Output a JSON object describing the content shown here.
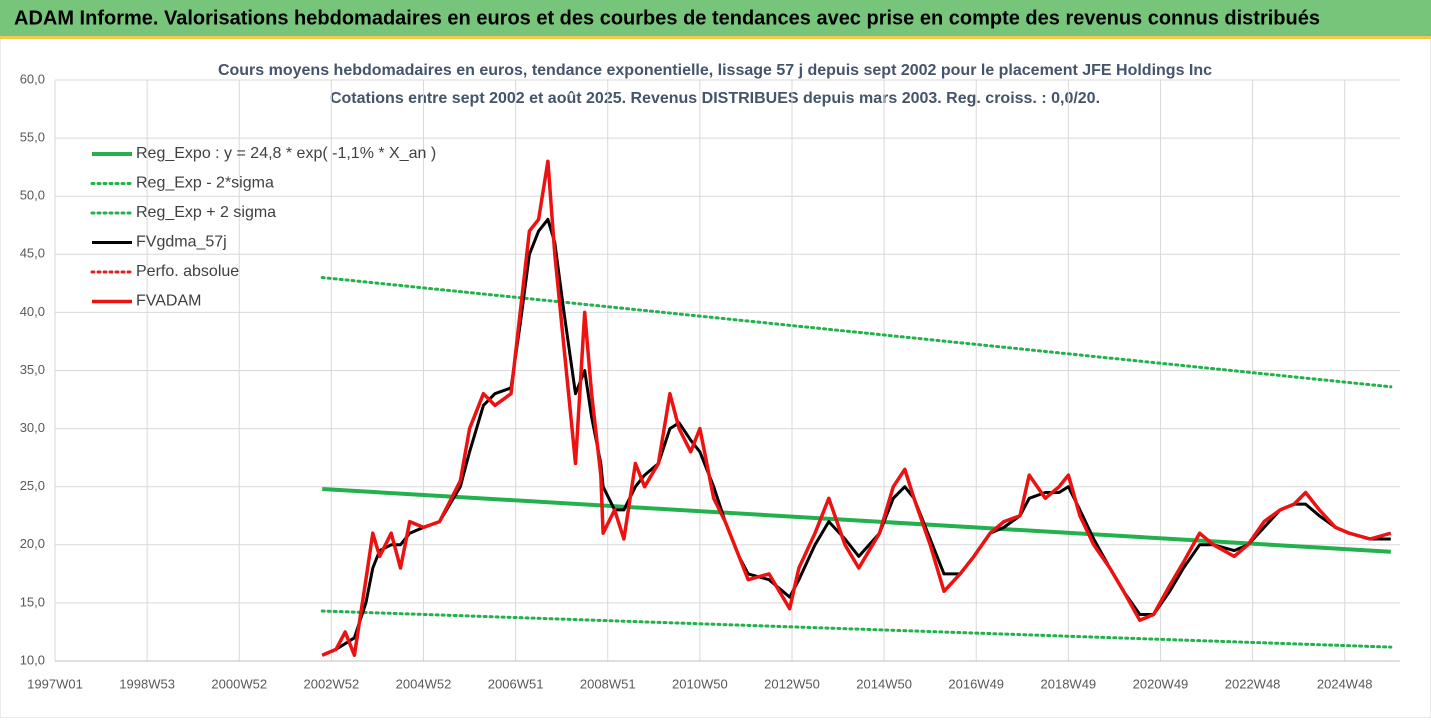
{
  "header": {
    "title": "ADAM Informe. Valorisations hebdomadaires en euros et des courbes de tendances avec prise en compte des revenus connus distribués"
  },
  "chart_data": {
    "type": "line",
    "title": "Cours moyens hebdomadaires en euros, tendance exponentielle, lissage 57 j depuis sept 2002 pour le placement JFE Holdings Inc",
    "subtitle": "Cotations entre sept 2002 et août 2025. Revenus DISTRIBUES depuis mars 2003. Reg. croiss. : 0,0/20.",
    "grid": true,
    "legend": "top-left",
    "xlim": [
      1997,
      2026.2
    ],
    "xticks": [
      {
        "value": 1997,
        "label": "1997W01"
      },
      {
        "value": 1999,
        "label": "1998W53"
      },
      {
        "value": 2001,
        "label": "2000W52"
      },
      {
        "value": 2003,
        "label": "2002W52"
      },
      {
        "value": 2005,
        "label": "2004W52"
      },
      {
        "value": 2007,
        "label": "2006W51"
      },
      {
        "value": 2009,
        "label": "2008W51"
      },
      {
        "value": 2011,
        "label": "2010W50"
      },
      {
        "value": 2013,
        "label": "2012W50"
      },
      {
        "value": 2015,
        "label": "2014W50"
      },
      {
        "value": 2017,
        "label": "2016W49"
      },
      {
        "value": 2019,
        "label": "2018W49"
      },
      {
        "value": 2021,
        "label": "2020W49"
      },
      {
        "value": 2023,
        "label": "2022W48"
      },
      {
        "value": 2025,
        "label": "2024W48"
      }
    ],
    "ylim": [
      10,
      60
    ],
    "yticks": [
      {
        "value": 10,
        "label": "10,0"
      },
      {
        "value": 15,
        "label": "15,0"
      },
      {
        "value": 20,
        "label": "20,0"
      },
      {
        "value": 25,
        "label": "25,0"
      },
      {
        "value": 30,
        "label": "30,0"
      },
      {
        "value": 35,
        "label": "35,0"
      },
      {
        "value": 40,
        "label": "40,0"
      },
      {
        "value": 45,
        "label": "45,0"
      },
      {
        "value": 50,
        "label": "50,0"
      },
      {
        "value": 55,
        "label": "55,0"
      },
      {
        "value": 60,
        "label": "60,0"
      }
    ],
    "x": [
      2002.8,
      2003.1,
      2003.3,
      2003.5,
      2003.75,
      2003.9,
      2004.05,
      2004.3,
      2004.5,
      2004.7,
      2005.0,
      2005.35,
      2005.8,
      2006.0,
      2006.3,
      2006.55,
      2006.9,
      2007.1,
      2007.3,
      2007.5,
      2007.7,
      2007.85,
      2008.05,
      2008.3,
      2008.5,
      2008.65,
      2008.85,
      2008.9,
      2009.15,
      2009.35,
      2009.6,
      2009.8,
      2010.1,
      2010.35,
      2010.55,
      2010.8,
      2011.0,
      2011.3,
      2011.55,
      2011.85,
      2012.05,
      2012.5,
      2012.95,
      2013.15,
      2013.5,
      2013.8,
      2014.15,
      2014.45,
      2014.9,
      2015.2,
      2015.45,
      2015.65,
      2016.0,
      2016.3,
      2016.65,
      2016.95,
      2017.3,
      2017.6,
      2017.95,
      2018.15,
      2018.5,
      2018.8,
      2019.0,
      2019.25,
      2019.55,
      2019.9,
      2020.2,
      2020.55,
      2020.85,
      2021.2,
      2021.5,
      2021.85,
      2022.15,
      2022.6,
      2022.9,
      2023.25,
      2023.6,
      2023.9,
      2024.15,
      2024.45,
      2024.8,
      2025.1,
      2025.55,
      2026.0
    ],
    "series": [
      {
        "name": "Reg_Expo : y = 24,8 * exp( -1,1% *  X_an )",
        "color": "#22b14c",
        "dotted": false,
        "width": 4,
        "x": [
          2002.8,
          2026.0
        ],
        "values": [
          24.8,
          19.4
        ]
      },
      {
        "name": "Reg_Exp - 2*sigma",
        "color": "#22b14c",
        "dotted": true,
        "width": 3,
        "x": [
          2002.8,
          2026.0
        ],
        "values": [
          14.3,
          11.2
        ]
      },
      {
        "name": "Reg_Exp + 2 sigma",
        "color": "#22b14c",
        "dotted": true,
        "width": 3,
        "x": [
          2002.8,
          2026.0
        ],
        "values": [
          43,
          33.6
        ]
      },
      {
        "name": "FVgdma_57j",
        "color": "#000000",
        "dotted": false,
        "width": 3,
        "values": [
          10.5,
          11,
          11.5,
          12,
          15,
          18,
          19.5,
          20,
          20,
          21,
          21.5,
          22,
          25,
          28,
          32,
          33,
          33.5,
          39,
          45,
          47,
          48,
          46,
          40,
          33,
          35,
          31,
          27,
          25,
          23,
          23,
          25,
          26,
          27,
          30,
          30.5,
          29,
          28,
          25,
          22,
          19,
          17.5,
          17,
          15.5,
          17,
          20,
          22,
          20.5,
          19,
          21,
          24,
          25,
          24,
          20.5,
          17.5,
          17.5,
          19,
          21,
          21.5,
          22.5,
          24,
          24.5,
          24.5,
          25,
          23,
          20.5,
          18,
          16,
          14,
          14,
          16,
          18,
          20,
          20,
          19.5,
          20,
          21.5,
          23,
          23.5,
          23.5,
          22.5,
          21.5,
          21,
          20.5,
          20.5
        ]
      },
      {
        "name": "Perfo. absolue",
        "color": "#e02020",
        "dotted": true,
        "width": 3,
        "x": [],
        "values": []
      },
      {
        "name": "FVADAM",
        "color": "#ee1111",
        "dotted": false,
        "width": 3.5,
        "values": [
          10.5,
          11,
          12.5,
          10.5,
          17,
          21,
          19,
          21,
          18,
          22,
          21.5,
          22,
          25.5,
          30,
          33,
          32,
          33,
          40,
          47,
          48,
          53,
          45,
          37,
          27,
          40,
          33,
          26,
          21,
          23,
          20.5,
          27,
          25,
          27,
          33,
          30,
          28,
          30,
          24,
          22,
          19,
          17,
          17.5,
          14.5,
          18,
          21,
          24,
          20,
          18,
          21,
          25,
          26.5,
          24,
          20,
          16,
          17.5,
          19,
          21,
          22,
          22.5,
          26,
          24,
          25,
          26,
          22.5,
          20,
          18,
          16,
          13.5,
          14,
          16.5,
          18.5,
          21,
          20,
          19,
          20,
          22,
          23,
          23.5,
          24.5,
          23,
          21.5,
          21,
          20.5,
          21
        ]
      }
    ]
  }
}
